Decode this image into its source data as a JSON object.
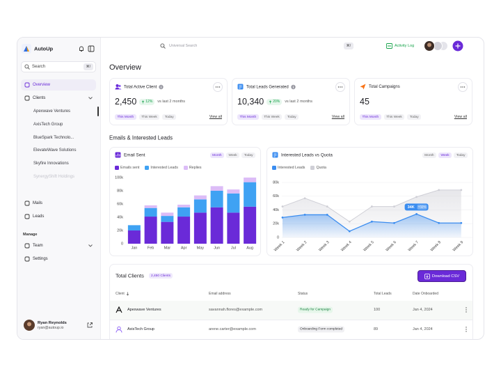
{
  "sidebar": {
    "brand": "AutoUp",
    "search": "Search",
    "search_shortcut": "⌘/",
    "active_nav": 0,
    "nav": [
      {
        "label": "Overview"
      },
      {
        "label": "Clients",
        "children": [
          "Apexwave Ventures",
          "AxisTech Group",
          "BlueSpark Technolo...",
          "ElevateWave Solutions",
          "Skyfire Innovations",
          "SynergyShift Holdings"
        ]
      },
      {
        "label": "Mails"
      },
      {
        "label": "Leads"
      }
    ],
    "manage_heading": "Manage",
    "manage": [
      {
        "label": "Team"
      },
      {
        "label": "Settings"
      }
    ],
    "user": {
      "name": "Ryan Reynolds",
      "email": "ryan@autoup.io"
    }
  },
  "topbar": {
    "search": "Universal Search",
    "shortcut": "⌘/",
    "activity_log": "Activity Log"
  },
  "page_title": "Overview",
  "stats": [
    {
      "title": "Total Active Client",
      "value": "2,450",
      "change": "12%",
      "comparison": "vs last 2 months",
      "tabs": [
        "This Month",
        "This Week",
        "Today"
      ],
      "active_tab": 0,
      "link": "View all"
    },
    {
      "title": "Total Leads Generated",
      "value": "10,340",
      "change": "20%",
      "comparison": "vs last 2 months",
      "tabs": [
        "This Month",
        "This Week",
        "Today"
      ],
      "active_tab": 0,
      "link": "View all"
    },
    {
      "title": "Total Campaigns",
      "value": "45",
      "tabs": [
        "This Month",
        "This Week",
        "Today"
      ],
      "active_tab": 0,
      "link": "View all"
    }
  ],
  "section_title": "Emails & Interested Leads",
  "chart_data": [
    {
      "type": "bar",
      "stacked": true,
      "title": "Email Sent",
      "tabs": [
        "Month",
        "Week",
        "Today"
      ],
      "active_tab": 0,
      "categories": [
        "Jan",
        "Feb",
        "Mar",
        "Apr",
        "May",
        "Jun",
        "Jul",
        "Aug"
      ],
      "series": [
        {
          "name": "Emails sent",
          "color": "#6a2ad8",
          "values": [
            20000,
            41000,
            33000,
            41000,
            47000,
            55000,
            47000,
            56000
          ]
        },
        {
          "name": "Interested Leads",
          "color": "#3fa2f3",
          "values": [
            8000,
            13000,
            9000,
            14000,
            20000,
            25000,
            29000,
            37000
          ]
        },
        {
          "name": "Replies",
          "color": "#dcbcf7",
          "values": [
            0,
            4000,
            5000,
            4000,
            6000,
            7000,
            6000,
            7000
          ]
        }
      ],
      "ylim": [
        0,
        100000
      ],
      "yticks": [
        0,
        {
          "value": 20000,
          "label": "20k"
        },
        {
          "value": 40000,
          "label": "40k"
        },
        {
          "value": 60000,
          "label": "60k"
        },
        {
          "value": 80000,
          "label": "80k"
        },
        {
          "value": 100000,
          "label": "100k"
        }
      ],
      "grid": false,
      "legend": "top-left"
    },
    {
      "type": "line",
      "area": true,
      "title": "Interested Leads vs Quota",
      "tabs": [
        "Month",
        "Week",
        "Today"
      ],
      "active_tab": 1,
      "categories": [
        "Week 1",
        "Week 2",
        "Week 3",
        "Week 4",
        "Week 5",
        "Week 6",
        "Week 7",
        "Week 8",
        "Week 9"
      ],
      "series": [
        {
          "name": "Interested Leads",
          "color": "#3b8df0",
          "values": [
            29000,
            33000,
            33000,
            9000,
            23000,
            21000,
            34000,
            21000,
            21000
          ],
          "value_labels": [
            null,
            null,
            null,
            null,
            null,
            null,
            "34K",
            null,
            null
          ]
        },
        {
          "name": "Quota",
          "color": "#cfcfd6",
          "values": [
            45000,
            57000,
            45000,
            23000,
            45000,
            45000,
            59000,
            69000,
            69000
          ]
        }
      ],
      "annotation": "+32%",
      "ylim": [
        0,
        80000
      ],
      "yticks": [
        0,
        {
          "value": 20000,
          "label": "20k"
        },
        {
          "value": 40000,
          "label": "40k"
        },
        {
          "value": 60000,
          "label": "60k"
        },
        {
          "value": 80000,
          "label": "80k"
        }
      ],
      "grid": true,
      "legend": "top-left"
    }
  ],
  "table": {
    "title": "Total Clients",
    "count": "2,450 Clients",
    "action": "Download CSV",
    "columns": [
      "Client",
      "Email address",
      "Status",
      "Total Leads",
      "Date Onboarded"
    ],
    "rows": [
      [
        "Apexwave Ventures",
        "savannah.flores@example.com",
        "Ready for Campaign",
        100,
        "Jan 4, 2024"
      ],
      [
        "AxisTech Group",
        "arene.carter@example.com",
        "Onboarding Form completed",
        89,
        "Jan 4, 2024"
      ]
    ]
  }
}
